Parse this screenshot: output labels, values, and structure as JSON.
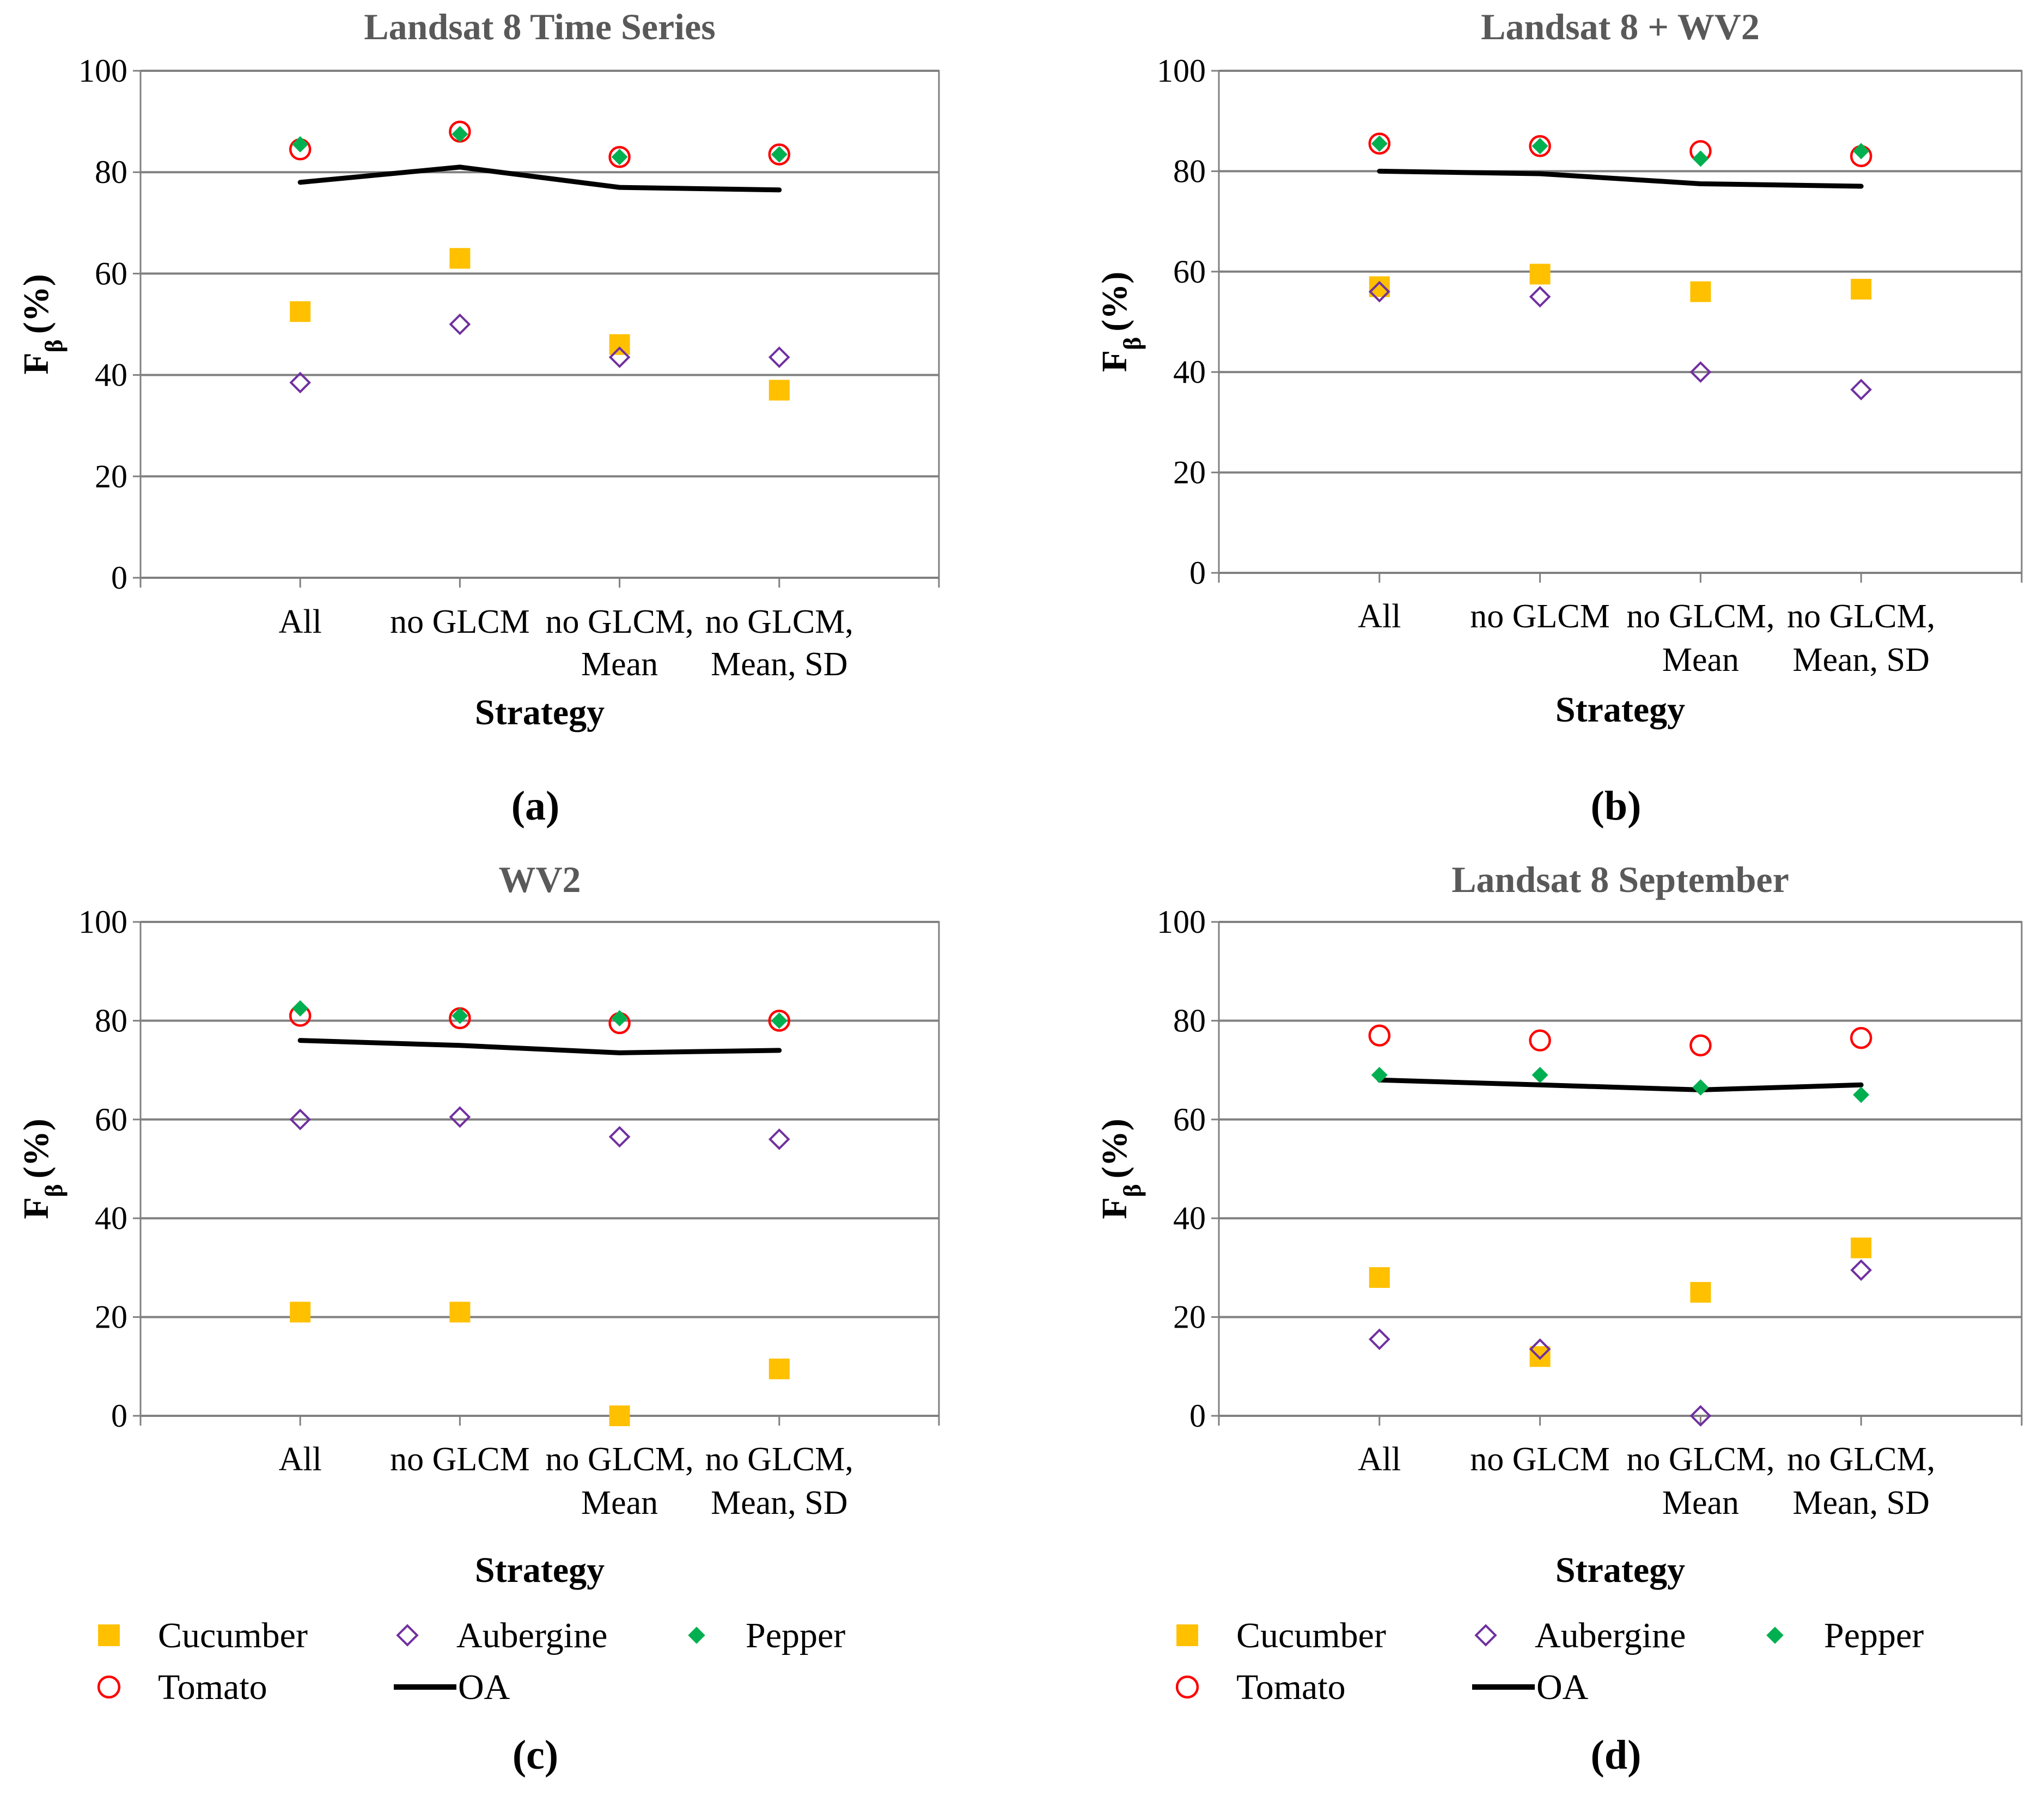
{
  "figure": {
    "panels": [
      {
        "label": "(a)",
        "show_legend": false
      },
      {
        "label": "(b)",
        "show_legend": false
      },
      {
        "label": "(c)",
        "show_legend": true
      },
      {
        "label": "(d)",
        "show_legend": true
      }
    ],
    "legend": [
      {
        "name": "Cucumber",
        "marker": "square"
      },
      {
        "name": "Aubergine",
        "marker": "diamond-open"
      },
      {
        "name": "Pepper",
        "marker": "diamond-filled"
      },
      {
        "name": "Tomato",
        "marker": "circle-open"
      },
      {
        "name": "OA",
        "marker": "line"
      }
    ],
    "colors": {
      "Cucumber": "#FFC000",
      "Aubergine": "#7030A0",
      "Pepper": "#00B050",
      "Tomato": "#FF0000",
      "OA": "#000000",
      "grid": "#808080",
      "title": "#595959"
    }
  },
  "chart_data": [
    {
      "type": "scatter",
      "title": "Landsat 8 Time Series",
      "xlabel": "Strategy",
      "ylabel": "Fβ (%)",
      "categories": [
        [
          "All"
        ],
        [
          "no GLCM"
        ],
        [
          "no GLCM,",
          "Mean"
        ],
        [
          "no GLCM,",
          "Mean, SD"
        ]
      ],
      "ylim": [
        0,
        100
      ],
      "yticks": [
        0,
        20,
        40,
        60,
        80,
        100
      ],
      "grid": true,
      "series": [
        {
          "name": "Cucumber",
          "values": [
            52.5,
            63,
            46,
            37
          ]
        },
        {
          "name": "Aubergine",
          "values": [
            38.5,
            50,
            43.5,
            43.5
          ]
        },
        {
          "name": "Pepper",
          "values": [
            85.5,
            87.5,
            83,
            83.5
          ]
        },
        {
          "name": "Tomato",
          "values": [
            84.5,
            88,
            83,
            83.5
          ]
        },
        {
          "name": "OA",
          "values": [
            78,
            81,
            77,
            76.5
          ]
        }
      ]
    },
    {
      "type": "scatter",
      "title": "Landsat 8 + WV2",
      "xlabel": "Strategy",
      "ylabel": "Fβ (%)",
      "categories": [
        [
          "All"
        ],
        [
          "no GLCM"
        ],
        [
          "no GLCM,",
          "Mean"
        ],
        [
          "no GLCM,",
          "Mean, SD"
        ]
      ],
      "ylim": [
        0,
        100
      ],
      "yticks": [
        0,
        20,
        40,
        60,
        80,
        100
      ],
      "grid": true,
      "series": [
        {
          "name": "Cucumber",
          "values": [
            57,
            59.5,
            56,
            56.5
          ]
        },
        {
          "name": "Aubergine",
          "values": [
            56,
            55,
            40,
            36.5
          ]
        },
        {
          "name": "Pepper",
          "values": [
            85.5,
            85,
            82.5,
            84
          ]
        },
        {
          "name": "Tomato",
          "values": [
            85.5,
            85,
            84,
            83
          ]
        },
        {
          "name": "OA",
          "values": [
            80,
            79.5,
            77.5,
            77
          ]
        }
      ]
    },
    {
      "type": "scatter",
      "title": "WV2",
      "xlabel": "Strategy",
      "ylabel": "Fβ (%)",
      "categories": [
        [
          "All"
        ],
        [
          "no GLCM"
        ],
        [
          "no GLCM,",
          "Mean"
        ],
        [
          "no GLCM,",
          "Mean, SD"
        ]
      ],
      "ylim": [
        0,
        100
      ],
      "yticks": [
        0,
        20,
        40,
        60,
        80,
        100
      ],
      "grid": true,
      "series": [
        {
          "name": "Cucumber",
          "values": [
            21,
            21,
            0,
            9.5
          ]
        },
        {
          "name": "Aubergine",
          "values": [
            60,
            60.5,
            56.5,
            56
          ]
        },
        {
          "name": "Pepper",
          "values": [
            82.5,
            81,
            80.5,
            80
          ]
        },
        {
          "name": "Tomato",
          "values": [
            81,
            80.5,
            79.5,
            80
          ]
        },
        {
          "name": "OA",
          "values": [
            76,
            75,
            73.5,
            74
          ]
        }
      ]
    },
    {
      "type": "scatter",
      "title": "Landsat 8 September",
      "xlabel": "Strategy",
      "ylabel": "Fβ (%)",
      "categories": [
        [
          "All"
        ],
        [
          "no GLCM"
        ],
        [
          "no GLCM,",
          "Mean"
        ],
        [
          "no GLCM,",
          "Mean, SD"
        ]
      ],
      "ylim": [
        0,
        100
      ],
      "yticks": [
        0,
        20,
        40,
        60,
        80,
        100
      ],
      "grid": true,
      "series": [
        {
          "name": "Cucumber",
          "values": [
            28,
            12,
            25,
            34
          ]
        },
        {
          "name": "Aubergine",
          "values": [
            15.5,
            13.5,
            0,
            29.5
          ]
        },
        {
          "name": "Pepper",
          "values": [
            69,
            69,
            66.5,
            65
          ]
        },
        {
          "name": "Tomato",
          "values": [
            77,
            76,
            75,
            76.5
          ]
        },
        {
          "name": "OA",
          "values": [
            68,
            67,
            66,
            67
          ]
        }
      ]
    }
  ]
}
